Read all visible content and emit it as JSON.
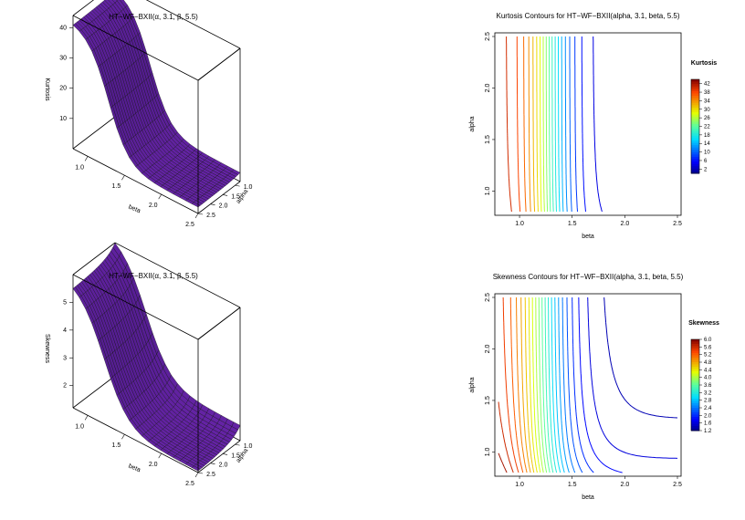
{
  "chart_data": [
    {
      "type": "surface3d",
      "title": "HT−WF−BXII(α, 3.1, β, 5.5)",
      "xlabel": "beta",
      "ylabel": "alpha",
      "zlabel": "Kurtosis",
      "x_ticks": [
        "1.0",
        "1.5",
        "2.0",
        "2.5"
      ],
      "y_ticks": [
        "1.0",
        "1.5",
        "2.0",
        "2.5"
      ],
      "z_ticks": [
        "10",
        "20",
        "30",
        "40"
      ],
      "xlim": [
        0.8,
        2.5
      ],
      "ylim": [
        0.8,
        2.5
      ],
      "zlim": [
        0,
        44
      ],
      "surface_color": "#5b1f99",
      "grid": "20x20"
    },
    {
      "type": "contour",
      "title": "Kurtosis Contours for HT−WF−BXII(alpha, 3.1, beta, 5.5)",
      "xlabel": "beta",
      "ylabel": "alpha",
      "x_ticks": [
        "1.0",
        "1.5",
        "2.0",
        "2.5"
      ],
      "y_ticks": [
        "1.0",
        "1.5",
        "2.0",
        "2.5"
      ],
      "xlim": [
        0.8,
        2.5
      ],
      "ylim": [
        0.8,
        2.5
      ],
      "legend_title": "Kurtosis",
      "legend_ticks": [
        "42",
        "38",
        "34",
        "30",
        "26",
        "22",
        "18",
        "14",
        "10",
        "6",
        "2"
      ],
      "levels": [
        2,
        4,
        6,
        8,
        10,
        12,
        14,
        16,
        18,
        20,
        22,
        24,
        26,
        28,
        30,
        32,
        34,
        36,
        38,
        40,
        42
      ],
      "zlim": [
        0,
        44
      ]
    },
    {
      "type": "surface3d",
      "title": "HT−WF−BXII(α, 3.1, β, 5.5)",
      "xlabel": "beta",
      "ylabel": "alpha",
      "zlabel": "Skewness",
      "x_ticks": [
        "1.0",
        "1.5",
        "2.0",
        "2.5"
      ],
      "y_ticks": [
        "1.0",
        "1.5",
        "2.0",
        "2.5"
      ],
      "z_ticks": [
        "2",
        "3",
        "4",
        "5"
      ],
      "xlim": [
        0.8,
        2.5
      ],
      "ylim": [
        0.8,
        2.5
      ],
      "zlim": [
        1.2,
        6.0
      ],
      "surface_color": "#5b1f99",
      "grid": "20x20"
    },
    {
      "type": "contour",
      "title": "Skewness Contours for HT−WF−BXII(alpha, 3.1, beta, 5.5)",
      "xlabel": "beta",
      "ylabel": "alpha",
      "x_ticks": [
        "1.0",
        "1.5",
        "2.0",
        "2.5"
      ],
      "y_ticks": [
        "1.0",
        "1.5",
        "2.0",
        "2.5"
      ],
      "xlim": [
        0.8,
        2.5
      ],
      "ylim": [
        0.8,
        2.5
      ],
      "legend_title": "Skewness",
      "legend_ticks": [
        "6.0",
        "5.6",
        "5.2",
        "4.8",
        "4.4",
        "4.0",
        "3.6",
        "3.2",
        "2.8",
        "2.4",
        "2.0",
        "1.6",
        "1.2"
      ],
      "levels": [
        1.2,
        1.4,
        1.6,
        1.8,
        2.0,
        2.2,
        2.4,
        2.6,
        2.8,
        3.0,
        3.2,
        3.4,
        3.6,
        3.8,
        4.0,
        4.2,
        4.4,
        4.6,
        4.8,
        5.0,
        5.2,
        5.4,
        5.6,
        5.8,
        6.0
      ],
      "zlim": [
        1.2,
        6.0
      ]
    }
  ]
}
